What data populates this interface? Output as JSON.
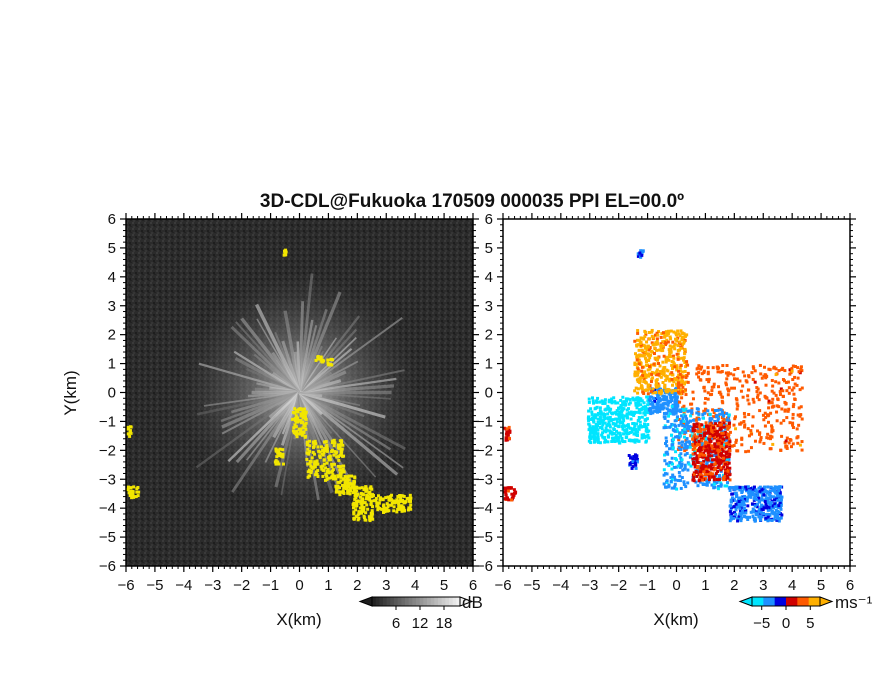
{
  "title": "3D-CDL@Fukuoka 170509 000035 PPI EL=00.0º",
  "chart_data": [
    {
      "type": "heatmap",
      "variable": "signal-to-noise ratio",
      "xlabel": "X(km)",
      "ylabel": "Y(km)",
      "xlim": [
        -6,
        6
      ],
      "ylim": [
        -6,
        6
      ],
      "xticks": [
        "−6",
        "−5",
        "−4",
        "−3",
        "−2",
        "−1",
        "0",
        "1",
        "2",
        "3",
        "4",
        "5",
        "6"
      ],
      "yticks": [
        "−6",
        "−5",
        "−4",
        "−3",
        "−2",
        "−1",
        "0",
        "1",
        "2",
        "3",
        "4",
        "5",
        "6"
      ],
      "colorbar": {
        "label": "dB",
        "ticks": [
          "6",
          "12",
          "18"
        ],
        "range": [
          0,
          22
        ],
        "colormap": "grayscale",
        "extend": "both"
      },
      "background_color": "#2a2a2a",
      "highlight_color": "#f2e600",
      "highlight_regions": [
        {
          "x": [
            -6.0,
            -5.85
          ],
          "y": [
            -1.5,
            -1.1
          ]
        },
        {
          "x": [
            -6.0,
            -5.6
          ],
          "y": [
            -3.6,
            -3.2
          ]
        },
        {
          "x": [
            -0.3,
            0.2
          ],
          "y": [
            -1.5,
            -0.5
          ]
        },
        {
          "x": [
            0.2,
            1.5
          ],
          "y": [
            -3.0,
            -1.6
          ]
        },
        {
          "x": [
            1.2,
            1.9
          ],
          "y": [
            -3.5,
            -2.8
          ]
        },
        {
          "x": [
            1.8,
            2.5
          ],
          "y": [
            -4.4,
            -3.2
          ]
        },
        {
          "x": [
            2.5,
            3.8
          ],
          "y": [
            -4.1,
            -3.5
          ]
        },
        {
          "x": [
            -0.9,
            -0.6
          ],
          "y": [
            -2.5,
            -1.9
          ]
        },
        {
          "x": [
            0.9,
            1.1
          ],
          "y": [
            1.0,
            1.2
          ]
        },
        {
          "x": [
            -0.6,
            -0.5
          ],
          "y": [
            4.8,
            5.0
          ]
        },
        {
          "x": [
            0.5,
            0.8
          ],
          "y": [
            1.1,
            1.3
          ]
        }
      ]
    },
    {
      "type": "heatmap",
      "variable": "radial velocity",
      "xlabel": "X(km)",
      "ylabel": "",
      "xlim": [
        -6,
        6
      ],
      "ylim": [
        -6,
        6
      ],
      "xticks": [
        "−6",
        "−5",
        "−4",
        "−3",
        "−2",
        "−1",
        "0",
        "1",
        "2",
        "3",
        "4",
        "5",
        "6"
      ],
      "yticks": [
        "−6",
        "−5",
        "−4",
        "−3",
        "−2",
        "−1",
        "0",
        "1",
        "2",
        "3",
        "4",
        "5",
        "6"
      ],
      "colorbar": {
        "label": "ms⁻¹",
        "ticks": [
          "−5",
          "0",
          "5"
        ],
        "range": [
          -7,
          7
        ],
        "colors": [
          "#00e5ff",
          "#1e90ff",
          "#0000e0",
          "#d00000",
          "#ff5a00",
          "#ffb000"
        ],
        "extend": "both"
      },
      "clusters": [
        {
          "region": "west-southwest fan",
          "x": [
            -3.1,
            -1.0
          ],
          "y": [
            -1.7,
            -0.1
          ],
          "velocity": -6.5
        },
        {
          "region": "near origin west",
          "x": [
            -1.0,
            0.0
          ],
          "y": [
            -0.7,
            0.2
          ],
          "velocity": -3.5
        },
        {
          "region": "northwest fan",
          "x": [
            -1.5,
            0.3
          ],
          "y": [
            0.0,
            2.2
          ],
          "velocity": 5.5
        },
        {
          "region": "east-southeast spread",
          "x": [
            0.0,
            4.3
          ],
          "y": [
            -2.0,
            1.0
          ],
          "velocity": 3.5
        },
        {
          "region": "south band",
          "x": [
            -0.5,
            1.8
          ],
          "y": [
            -3.3,
            -0.5
          ],
          "velocity": -4
        },
        {
          "region": "south band east edge",
          "x": [
            0.5,
            1.8
          ],
          "y": [
            -3.0,
            -1.0
          ],
          "velocity": 2
        },
        {
          "region": "southeast ridge",
          "x": [
            1.8,
            3.6
          ],
          "y": [
            -4.4,
            -3.2
          ],
          "velocity": -3
        },
        {
          "region": "west edge",
          "x": [
            -6.0,
            -5.8
          ],
          "y": [
            -1.6,
            -1.1
          ],
          "velocity": 1.5
        },
        {
          "region": "west edge south",
          "x": [
            -6.0,
            -5.6
          ],
          "y": [
            -3.7,
            -3.2
          ],
          "velocity": 1.5
        },
        {
          "region": "north isolated",
          "x": [
            -1.4,
            -1.2
          ],
          "y": [
            4.7,
            5.0
          ],
          "velocity": -3
        },
        {
          "region": "southwest isolated",
          "x": [
            -1.7,
            -1.4
          ],
          "y": [
            -2.6,
            -2.1
          ],
          "velocity": -2
        }
      ]
    }
  ]
}
